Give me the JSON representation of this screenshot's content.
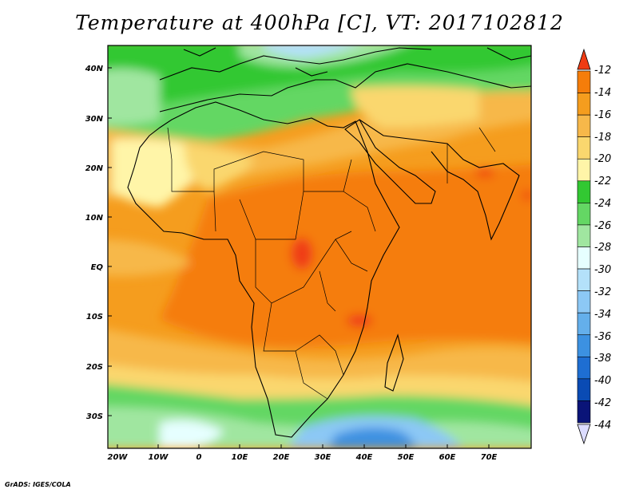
{
  "title": "Temperature at 400hPa [C], VT: 2017102812",
  "credit": "GrADS: IGES/COLA",
  "axes": {
    "lat_labels": [
      "40N",
      "30N",
      "20N",
      "10N",
      "EQ",
      "10S",
      "20S",
      "30S"
    ],
    "lon_labels": [
      "20W",
      "10W",
      "0",
      "10E",
      "20E",
      "30E",
      "40E",
      "50E",
      "60E",
      "70E"
    ]
  },
  "colorbar": {
    "levels": [
      "-12",
      "-14",
      "-16",
      "-18",
      "-20",
      "-22",
      "-24",
      "-26",
      "-28",
      "-30",
      "-32",
      "-34",
      "-36",
      "-38",
      "-40",
      "-42",
      "-44"
    ],
    "colors": [
      "#f03c14",
      "#f57d0a",
      "#f59d1e",
      "#f7b84a",
      "#fad76e",
      "#fff5a8",
      "#32c832",
      "#64d764",
      "#a0e6a0",
      "#e6ffff",
      "#b4e1fa",
      "#8cc8f5",
      "#64afeb",
      "#3c91e1",
      "#1e6ed2",
      "#0a4bb4",
      "#0a1478"
    ],
    "top_arrow_color": "#f03c14",
    "bottom_arrow_color": "#dcdcff"
  }
}
